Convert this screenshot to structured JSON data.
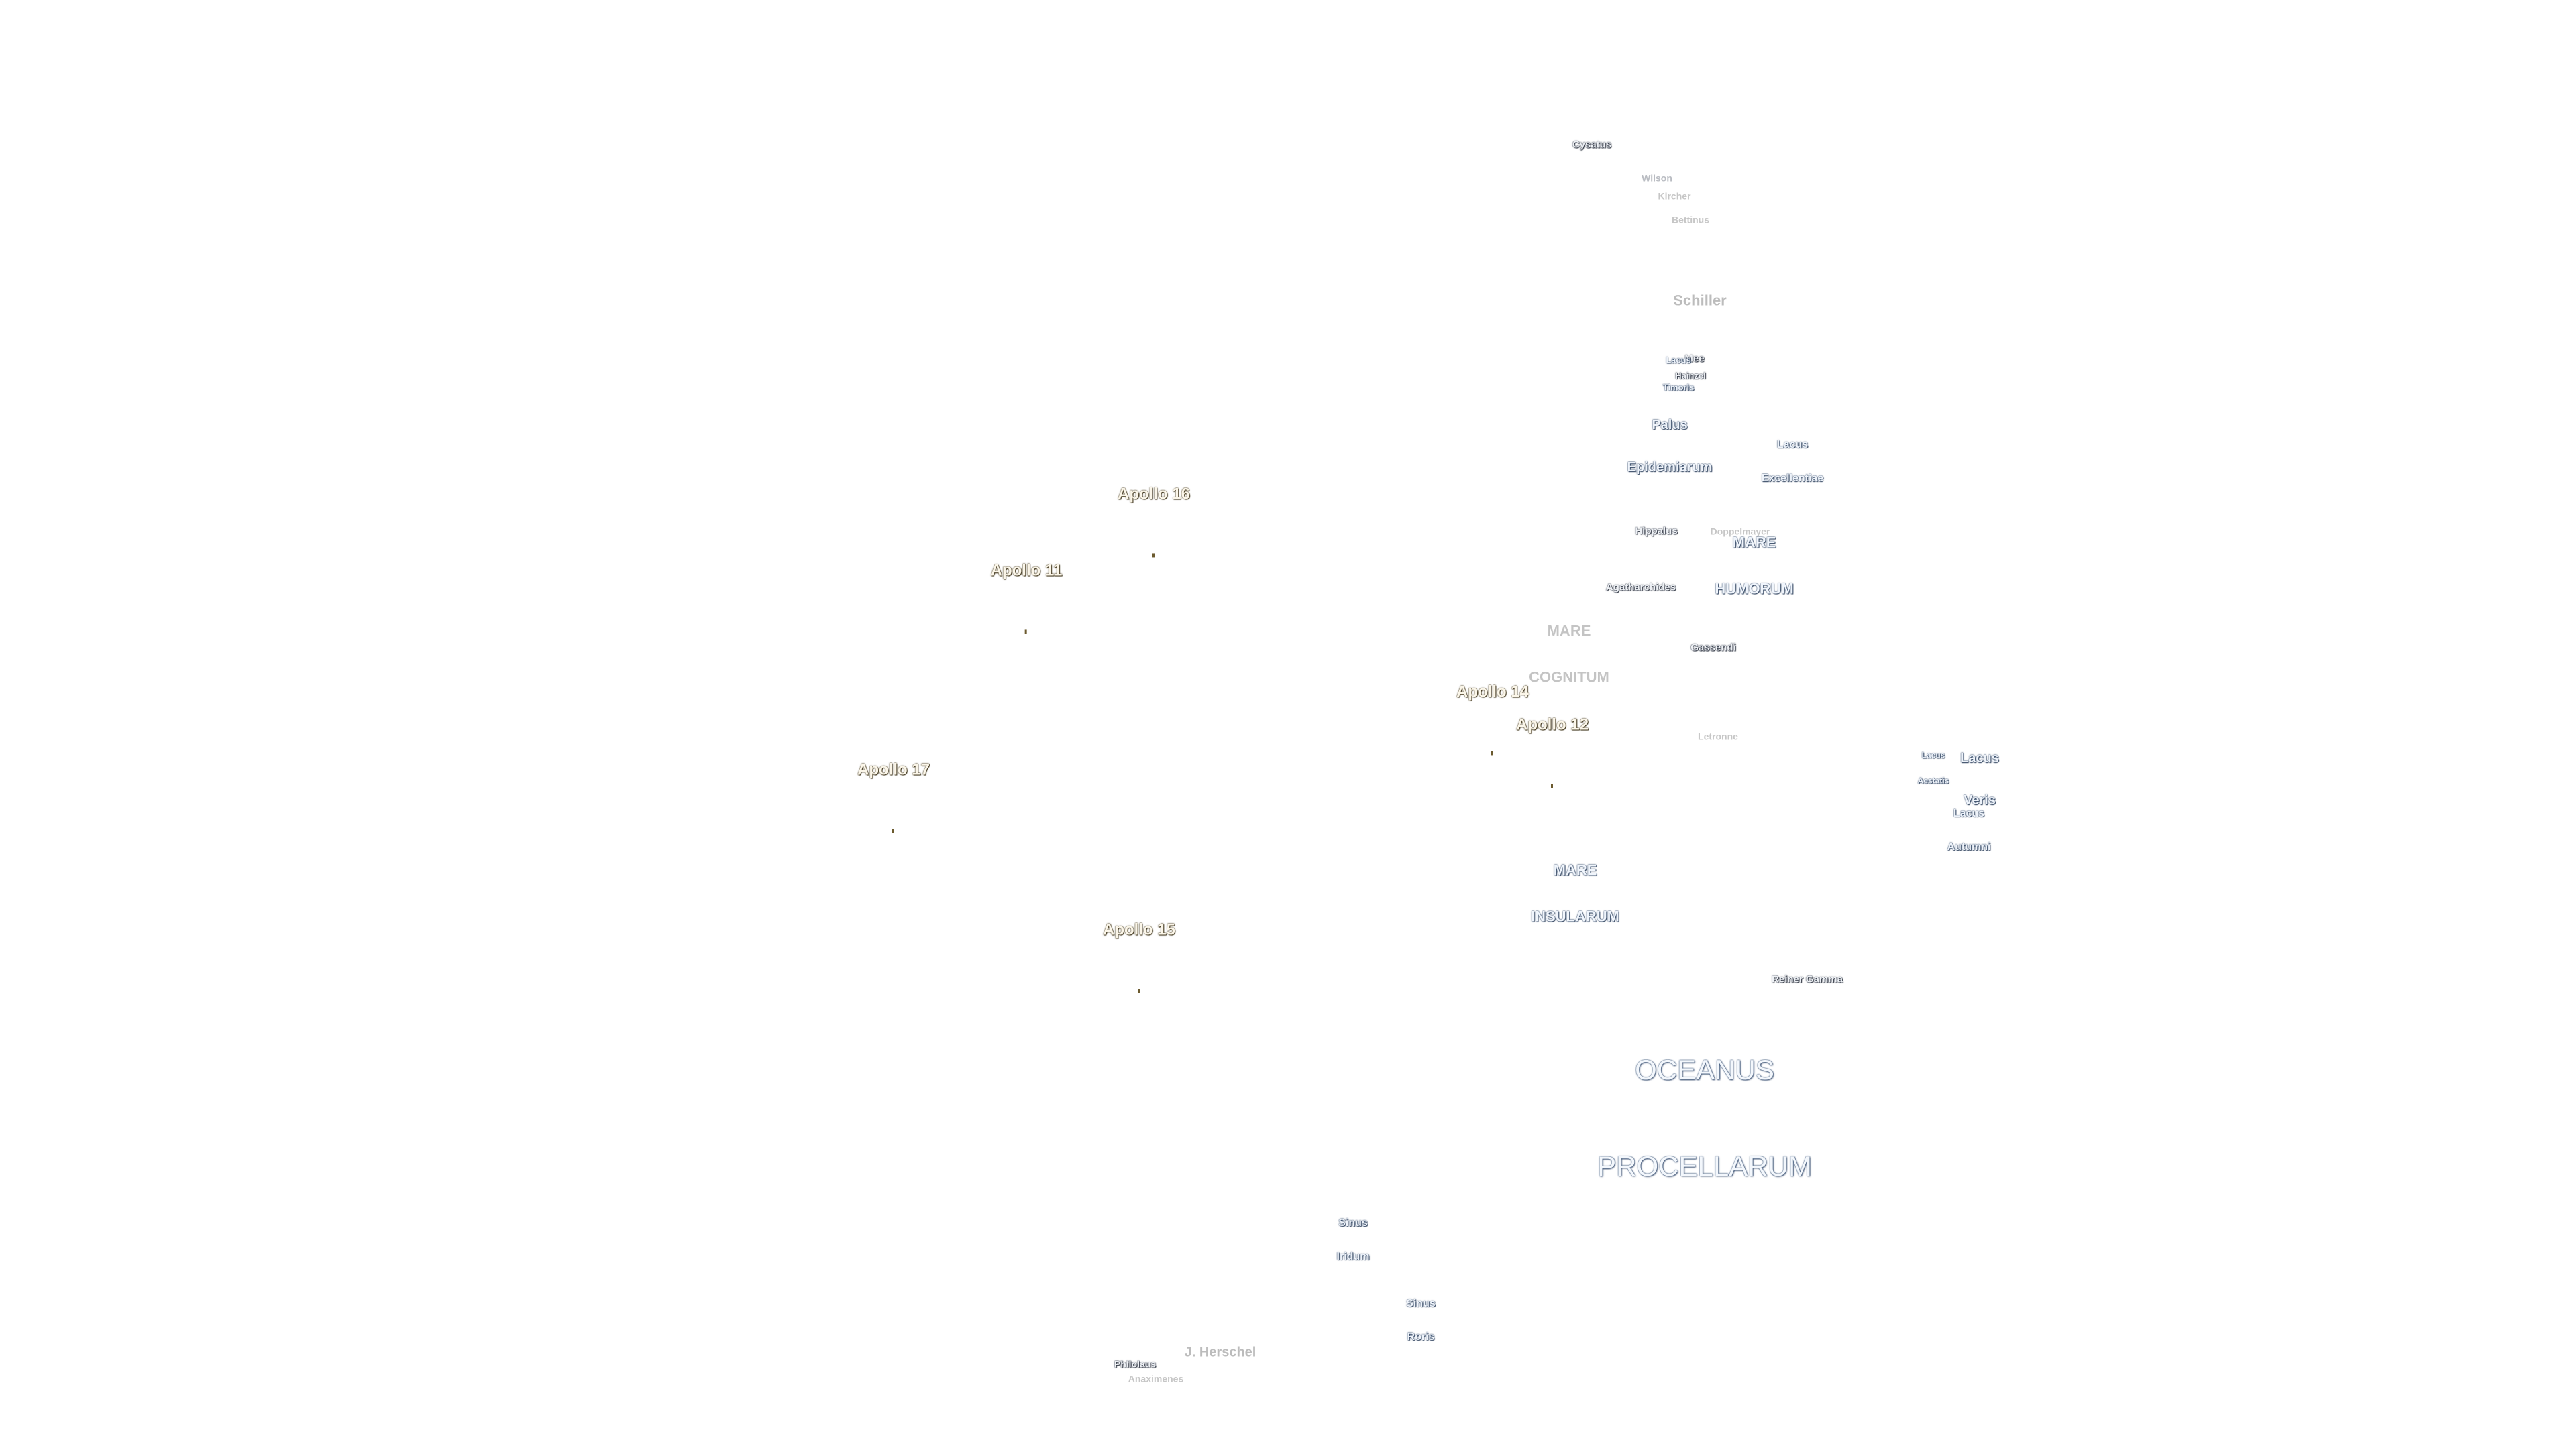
{
  "map": {
    "apollo_sites": [
      {
        "id": "apollo-16",
        "label": "Apollo 16"
      },
      {
        "id": "apollo-11",
        "label": "Apollo 11"
      },
      {
        "id": "apollo-14",
        "label": "Apollo 14"
      },
      {
        "id": "apollo-12",
        "label": "Apollo 12"
      },
      {
        "id": "apollo-17",
        "label": "Apollo 17"
      },
      {
        "id": "apollo-15",
        "label": "Apollo 15"
      }
    ],
    "features": {
      "cysatus": "Cysatus",
      "wilson": "Wilson",
      "kircher": "Kircher",
      "bettinus": "Bettinus",
      "schiller": "Schiller",
      "mee": "Mee",
      "lacus_timoris": [
        "Lacus",
        "Timoris"
      ],
      "lacus_timoris_overlap": "Hainzel",
      "palus_epidemiarum": [
        "Palus",
        "Epidemiarum"
      ],
      "lacus_excellentiae": [
        "Lacus",
        "Excellentiae"
      ],
      "hippalus": "Hippalus",
      "doppelmayer": "Doppelmayer",
      "mare_humorum": [
        "MARE",
        "HUMORUM"
      ],
      "agatharchides": "Agatharchides",
      "mare_cognitum": [
        "MARE",
        "COGNITUM"
      ],
      "gassendi": "Gassendi",
      "letronne": "Letronne",
      "lacus_aestatis": [
        "Lacus",
        "Aestatis"
      ],
      "lacus_veris": [
        "Lacus",
        "Veris"
      ],
      "lacus_autumni": [
        "Lacus",
        "Autumni"
      ],
      "mare_insularum": [
        "MARE",
        "INSULARUM"
      ],
      "reiner_gamma": "Reiner Gamma",
      "oceanus_procellarum": [
        "OCEANUS",
        "PROCELLARUM"
      ],
      "sinus_iridum": [
        "Sinus",
        "Iridum"
      ],
      "sinus_roris": [
        "Sinus",
        "Roris"
      ],
      "j_herschel": "J. Herschel",
      "philolaus": "Philolaus",
      "anaximenes": "Anaximenes"
    }
  }
}
